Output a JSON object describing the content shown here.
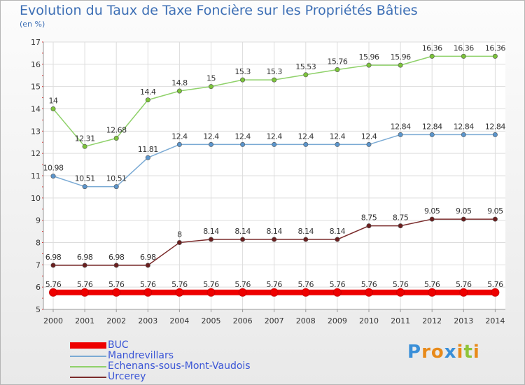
{
  "chart_data": {
    "type": "line",
    "title": "Evolution du Taux de Taxe Foncière sur les Propriétés Bâties",
    "subtitle": "(en %)",
    "xlabel": "",
    "ylabel": "",
    "ylim": [
      5,
      17
    ],
    "yticks": [
      "5",
      "6",
      "7",
      "8",
      "9",
      "10",
      "11",
      "12",
      "13",
      "14",
      "15",
      "16",
      "17"
    ],
    "categories": [
      "2000",
      "2001",
      "2002",
      "2003",
      "2004",
      "2005",
      "2006",
      "2007",
      "2008",
      "2009",
      "2010",
      "2011",
      "2012",
      "2013",
      "2014"
    ],
    "grid": true,
    "legend_position": "bottom-left",
    "series": [
      {
        "name": "Echenans-sous-Mont-Vaudois",
        "color": "#8fd16a",
        "marker_color": "#7cc43a",
        "values": [
          14,
          12.31,
          12.68,
          14.4,
          14.8,
          15,
          15.3,
          15.3,
          15.53,
          15.76,
          15.96,
          15.96,
          16.36,
          16.36,
          16.36
        ],
        "labels": [
          "14",
          "12.31",
          "12.68",
          "14.4",
          "14.8",
          "15",
          "15.3",
          "15.3",
          "15.53",
          "15.76",
          "15.96",
          "15.96",
          "16.36",
          "16.36",
          "16.36"
        ]
      },
      {
        "name": "Mandrevillars",
        "color": "#7aaad4",
        "marker_color": "#5b95cc",
        "values": [
          10.98,
          10.51,
          10.51,
          11.81,
          12.4,
          12.4,
          12.4,
          12.4,
          12.4,
          12.4,
          12.4,
          12.84,
          12.84,
          12.84,
          12.84
        ],
        "labels": [
          "10.98",
          "10.51",
          "10.51",
          "11.81",
          "12.4",
          "12.4",
          "12.4",
          "12.4",
          "12.4",
          "12.4",
          "12.4",
          "12.84",
          "12.84",
          "12.84",
          "12.84"
        ]
      },
      {
        "name": "Urcerey",
        "color": "#7a2b2b",
        "marker_color": "#6b1f1f",
        "values": [
          6.98,
          6.98,
          6.98,
          6.98,
          8,
          8.14,
          8.14,
          8.14,
          8.14,
          8.14,
          8.75,
          8.75,
          9.05,
          9.05,
          9.05
        ],
        "labels": [
          "6.98",
          "6.98",
          "6.98",
          "6.98",
          "8",
          "8.14",
          "8.14",
          "8.14",
          "8.14",
          "8.14",
          "8.75",
          "8.75",
          "9.05",
          "9.05",
          "9.05"
        ]
      },
      {
        "name": "BUC",
        "color": "#ee0000",
        "marker_color": "#ee0000",
        "values": [
          5.76,
          5.76,
          5.76,
          5.76,
          5.76,
          5.76,
          5.76,
          5.76,
          5.76,
          5.76,
          5.76,
          5.76,
          5.76,
          5.76,
          5.76
        ],
        "labels": [
          "5.76",
          "5.76",
          "5.76",
          "5.76",
          "5.76",
          "5.76",
          "5.76",
          "5.76",
          "5.76",
          "5.76",
          "5.76",
          "5.76",
          "5.76",
          "5.76",
          "5.76"
        ]
      }
    ]
  },
  "legend": {
    "items": [
      {
        "label": "BUC",
        "color": "#ee0000"
      },
      {
        "label": "Mandrevillars",
        "color": "#7aaad4"
      },
      {
        "label": "Echenans-sous-Mont-Vaudois",
        "color": "#8fd16a"
      },
      {
        "label": "Urcerey",
        "color": "#7a2b2b"
      }
    ]
  },
  "logo": {
    "text": "Proxiti",
    "letters": [
      {
        "ch": "P",
        "color": "#3a8fd8"
      },
      {
        "ch": "r",
        "color": "#e88a1a"
      },
      {
        "ch": "o",
        "color": "#e88a1a"
      },
      {
        "ch": "x",
        "color": "#3a8fd8"
      },
      {
        "ch": "i",
        "color": "#e88a1a"
      },
      {
        "ch": "t",
        "color": "#8fc43a"
      },
      {
        "ch": "i",
        "color": "#e88a1a"
      }
    ]
  }
}
